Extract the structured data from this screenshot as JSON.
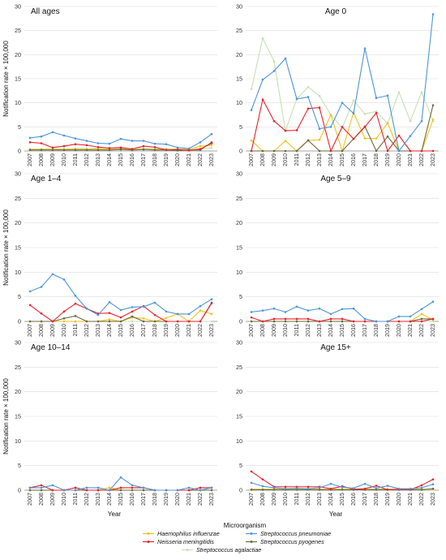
{
  "chart_data": {
    "type": "line",
    "x_title": "Year",
    "y_title": "Notification rate × 100,000",
    "years": [
      "2007",
      "2008",
      "2009",
      "2010",
      "2011",
      "2012",
      "2013",
      "2014",
      "2015",
      "2016",
      "2017",
      "2018",
      "2019",
      "2020",
      "2021",
      "2022",
      "2023"
    ],
    "legend": {
      "title": "Microorganism",
      "items": [
        {
          "key": "hi",
          "label": "Haemophilus influenzae",
          "color": "#F2C21B"
        },
        {
          "key": "sp",
          "label": "Streptococcus pneumoniae",
          "color": "#4E95D9"
        },
        {
          "key": "nm",
          "label": "Neisseria meningitidis",
          "color": "#E8222A"
        },
        {
          "key": "py",
          "label": "Streptococcus pyogenes",
          "color": "#6B6B3A"
        },
        {
          "key": "ag",
          "label": "Streptococcus agalactiae",
          "color": "#C6E0B4"
        }
      ]
    },
    "panels": [
      {
        "title": "All ages",
        "ylim": [
          0,
          30
        ],
        "yticks": [
          0,
          5,
          10,
          15,
          20,
          25,
          30
        ],
        "series": {
          "sp": [
            2.7,
            3.0,
            3.9,
            3.2,
            2.6,
            2.1,
            1.6,
            1.5,
            2.5,
            2.1,
            2.1,
            1.5,
            1.4,
            0.7,
            0.5,
            1.8,
            3.5
          ],
          "nm": [
            1.8,
            1.6,
            0.7,
            1.0,
            1.4,
            1.2,
            0.8,
            0.6,
            0.7,
            0.4,
            1.0,
            0.8,
            0.2,
            0.3,
            0.1,
            0.4,
            1.6
          ],
          "hi": [
            0.3,
            0.3,
            0.3,
            0.3,
            0.4,
            0.3,
            0.4,
            0.3,
            0.4,
            0.3,
            0.3,
            0.3,
            0.3,
            0.3,
            0.3,
            1.0,
            1.2
          ],
          "py": [
            0.2,
            0.2,
            0.2,
            0.2,
            0.2,
            0.2,
            0.2,
            0.2,
            0.3,
            0.2,
            0.3,
            0.2,
            0.2,
            0.1,
            0.2,
            0.2,
            1.8
          ],
          "ag": [
            0.4,
            0.4,
            0.5,
            0.4,
            0.5,
            0.5,
            0.6,
            0.5,
            0.6,
            0.5,
            0.6,
            0.5,
            0.5,
            0.4,
            0.4,
            0.5,
            0.6
          ]
        }
      },
      {
        "title": "Age 0",
        "ylim": [
          0,
          30
        ],
        "yticks": [
          0,
          5,
          10,
          15,
          20,
          25,
          30
        ],
        "series": {
          "sp": [
            8.5,
            14.8,
            16.6,
            19.2,
            10.8,
            11.2,
            4.6,
            5.0,
            10.0,
            7.8,
            21.3,
            11.0,
            11.5,
            0.0,
            3.1,
            6.2,
            28.4
          ],
          "nm": [
            0.0,
            10.7,
            6.2,
            4.2,
            4.3,
            8.8,
            9.0,
            0.0,
            5.0,
            2.5,
            5.0,
            7.9,
            0.0,
            3.2,
            0.0,
            0.0,
            0.0
          ],
          "hi": [
            2.2,
            0.0,
            0.0,
            2.1,
            0.0,
            2.2,
            2.3,
            7.5,
            0.0,
            8.0,
            2.6,
            2.6,
            5.8,
            0.0,
            0.0,
            0.0,
            6.5
          ],
          "py": [
            0.0,
            0.0,
            0.0,
            0.0,
            0.0,
            2.2,
            0.0,
            0.0,
            0.0,
            2.5,
            5.1,
            0.0,
            3.0,
            0.0,
            0.0,
            0.0,
            9.5
          ],
          "ag": [
            12.8,
            23.4,
            18.6,
            4.2,
            10.8,
            13.3,
            11.4,
            7.5,
            4.8,
            10.5,
            7.7,
            8.2,
            5.7,
            12.2,
            6.2,
            12.2,
            6.2
          ]
        }
      },
      {
        "title": "Age 1–4",
        "ylim": [
          0,
          30
        ],
        "yticks": [
          0,
          5,
          10,
          15,
          20,
          25,
          30
        ],
        "series": {
          "sp": [
            6.1,
            7.0,
            9.6,
            8.5,
            5.2,
            2.6,
            1.3,
            3.9,
            2.3,
            2.9,
            3.0,
            3.8,
            2.0,
            1.5,
            1.5,
            3.1,
            4.5
          ],
          "nm": [
            3.3,
            1.6,
            0.0,
            2.0,
            3.6,
            2.6,
            1.6,
            1.7,
            0.8,
            2.0,
            3.1,
            1.3,
            0.0,
            0.0,
            0.0,
            0.0,
            3.7
          ],
          "hi": [
            0.0,
            0.0,
            0.0,
            0.0,
            0.0,
            0.0,
            0.0,
            0.4,
            0.0,
            0.8,
            0.6,
            0.0,
            0.7,
            1.5,
            0.0,
            2.2,
            1.5
          ],
          "py": [
            0.0,
            0.0,
            0.0,
            0.6,
            1.1,
            0.0,
            0.0,
            0.0,
            0.0,
            1.0,
            0.0,
            0.0,
            0.0,
            0.0,
            0.0,
            0.0,
            3.8
          ],
          "ag": [
            0.0,
            0.0,
            0.0,
            0.0,
            0.0,
            0.0,
            0.0,
            0.0,
            0.0,
            0.0,
            0.0,
            0.0,
            0.0,
            0.0,
            0.0,
            0.0,
            0.0
          ]
        }
      },
      {
        "title": "Age 5–9",
        "ylim": [
          0,
          30
        ],
        "yticks": [
          0,
          5,
          10,
          15,
          20,
          25,
          30
        ],
        "series": {
          "sp": [
            1.9,
            2.2,
            2.6,
            1.9,
            3.0,
            2.2,
            2.6,
            1.5,
            2.5,
            2.6,
            0.5,
            0.0,
            0.0,
            1.0,
            1.0,
            2.5,
            4.0
          ],
          "nm": [
            0.8,
            0.0,
            0.5,
            0.5,
            0.5,
            0.5,
            0.0,
            0.5,
            0.5,
            0.0,
            0.0,
            0.0,
            0.0,
            0.0,
            0.0,
            0.0,
            0.5
          ],
          "hi": [
            0.0,
            0.0,
            0.0,
            0.0,
            0.0,
            0.0,
            0.0,
            0.0,
            0.0,
            0.0,
            0.0,
            0.0,
            0.0,
            0.0,
            0.0,
            1.5,
            0.3
          ],
          "py": [
            0.0,
            0.0,
            0.0,
            0.0,
            0.0,
            0.0,
            0.0,
            0.0,
            0.0,
            0.0,
            0.0,
            0.0,
            0.0,
            0.0,
            0.0,
            0.5,
            0.5
          ],
          "ag": [
            0.0,
            0.0,
            0.0,
            0.0,
            0.0,
            0.0,
            0.0,
            0.0,
            0.0,
            0.0,
            0.0,
            0.0,
            0.0,
            0.0,
            0.0,
            0.0,
            0.0
          ]
        }
      },
      {
        "title": "Age 10–14",
        "ylim": [
          0,
          30
        ],
        "yticks": [
          0,
          5,
          10,
          15,
          20,
          25,
          30
        ],
        "series": {
          "sp": [
            0.5,
            0.5,
            1.0,
            0.0,
            0.0,
            0.5,
            0.5,
            0.0,
            2.6,
            1.0,
            0.5,
            0.0,
            0.0,
            0.0,
            0.5,
            0.0,
            0.5
          ],
          "nm": [
            0.5,
            1.0,
            0.0,
            0.0,
            0.5,
            0.0,
            0.0,
            0.0,
            0.5,
            0.5,
            0.5,
            0.0,
            0.0,
            0.0,
            0.0,
            0.5,
            0.5
          ],
          "hi": [
            0.0,
            0.0,
            0.0,
            0.0,
            0.0,
            0.0,
            0.0,
            0.5,
            0.0,
            0.0,
            0.0,
            0.0,
            0.0,
            0.0,
            0.0,
            0.0,
            0.0
          ],
          "py": [
            0.0,
            0.0,
            0.0,
            0.0,
            0.0,
            0.0,
            0.0,
            0.0,
            0.0,
            0.0,
            0.0,
            0.0,
            0.0,
            0.0,
            0.0,
            0.0,
            0.0
          ],
          "ag": [
            0.0,
            0.0,
            0.0,
            0.0,
            0.0,
            0.0,
            0.0,
            0.0,
            0.0,
            0.0,
            0.0,
            0.0,
            0.0,
            0.0,
            0.0,
            0.0,
            0.0
          ]
        }
      },
      {
        "title": "Age 15+",
        "ylim": [
          0,
          30
        ],
        "yticks": [
          0,
          5,
          10,
          15,
          20,
          25,
          30
        ],
        "series": {
          "sp": [
            1.5,
            0.8,
            0.5,
            0.3,
            0.4,
            0.3,
            0.5,
            1.3,
            0.6,
            0.4,
            1.3,
            0.4,
            0.9,
            0.3,
            0.3,
            0.5,
            1.2
          ],
          "nm": [
            3.8,
            2.2,
            0.7,
            0.7,
            0.7,
            0.7,
            0.7,
            0.3,
            0.8,
            0.2,
            0.3,
            0.9,
            0.1,
            0.2,
            0.1,
            1.0,
            2.2
          ],
          "hi": [
            0.2,
            0.2,
            0.2,
            0.2,
            0.2,
            0.2,
            0.2,
            0.2,
            0.2,
            0.2,
            0.2,
            0.2,
            0.2,
            0.2,
            0.2,
            0.2,
            0.2
          ],
          "py": [
            0.1,
            0.1,
            0.1,
            0.1,
            0.1,
            0.1,
            0.1,
            0.1,
            0.1,
            0.1,
            0.1,
            0.1,
            0.1,
            0.1,
            0.1,
            0.1,
            0.3
          ],
          "ag": [
            0.1,
            0.1,
            0.1,
            0.1,
            0.1,
            0.1,
            0.1,
            0.1,
            0.1,
            0.1,
            0.1,
            0.1,
            0.1,
            0.1,
            0.1,
            0.1,
            0.1
          ]
        }
      }
    ]
  }
}
